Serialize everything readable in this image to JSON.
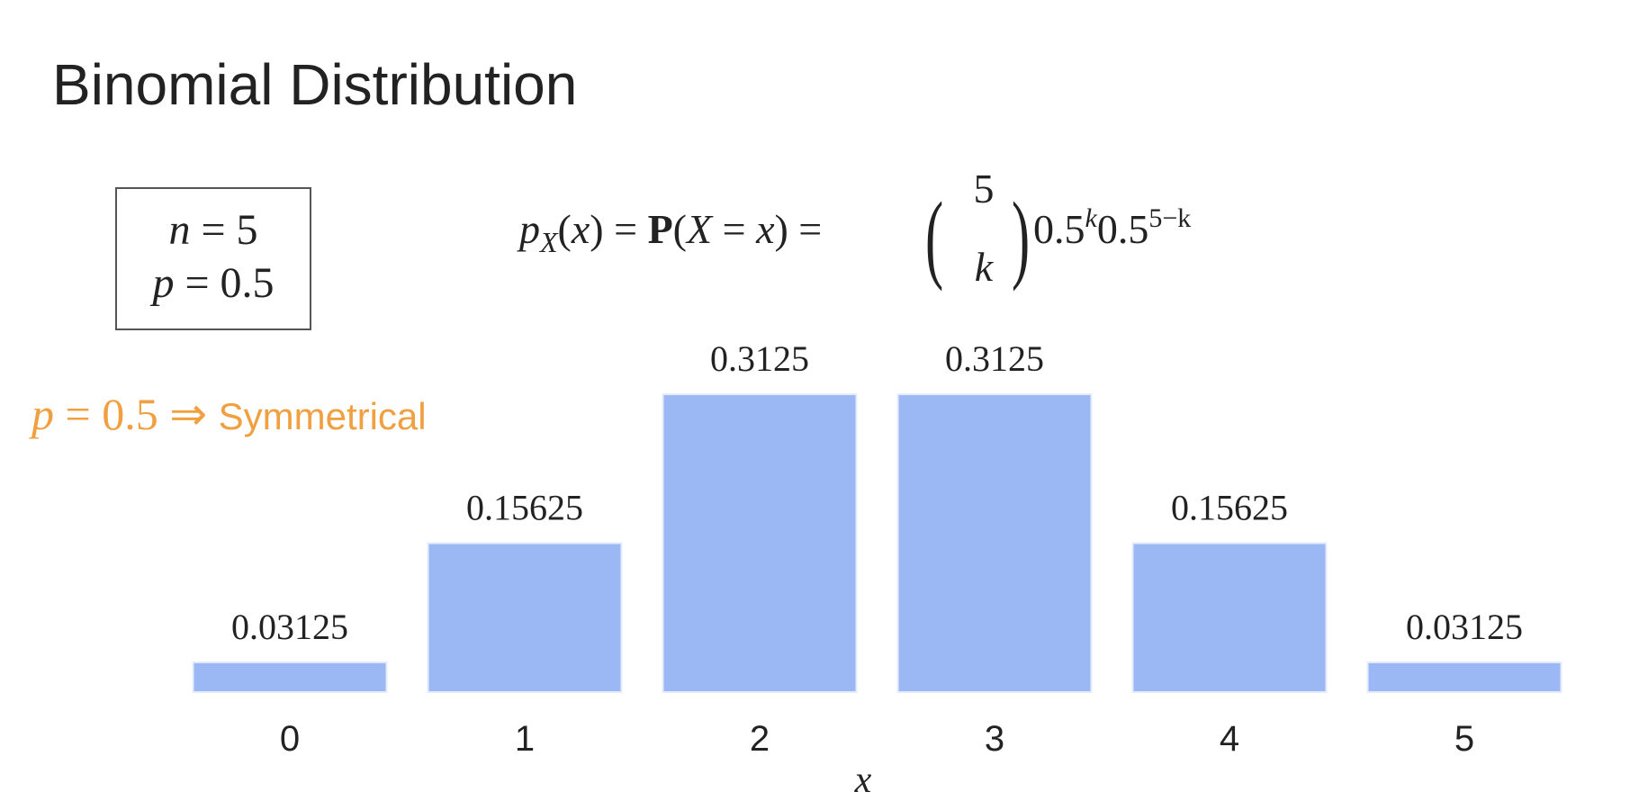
{
  "chart_data": {
    "type": "bar",
    "title": "Binomial Distribution",
    "params": [
      [
        "n",
        " = 5"
      ],
      [
        "p",
        " = 0.5"
      ]
    ],
    "formula": [
      "p",
      "X",
      "(",
      "x",
      ") = ",
      "P",
      "(",
      "X",
      " = ",
      "x",
      ") = ",
      "(",
      "5",
      "k",
      ")",
      "0.5",
      "k",
      "0.5",
      "5−k"
    ],
    "annotation": [
      "p",
      " = 0.5 ⇒ ",
      "Symmetrical"
    ],
    "annotation_color": "#f0a040",
    "categories": [
      "0",
      "1",
      "2",
      "3",
      "4",
      "5"
    ],
    "values": [
      0.03125,
      0.15625,
      0.3125,
      0.3125,
      0.15625,
      0.03125
    ],
    "color": "#9cb8f4",
    "xlabel": "x"
  }
}
